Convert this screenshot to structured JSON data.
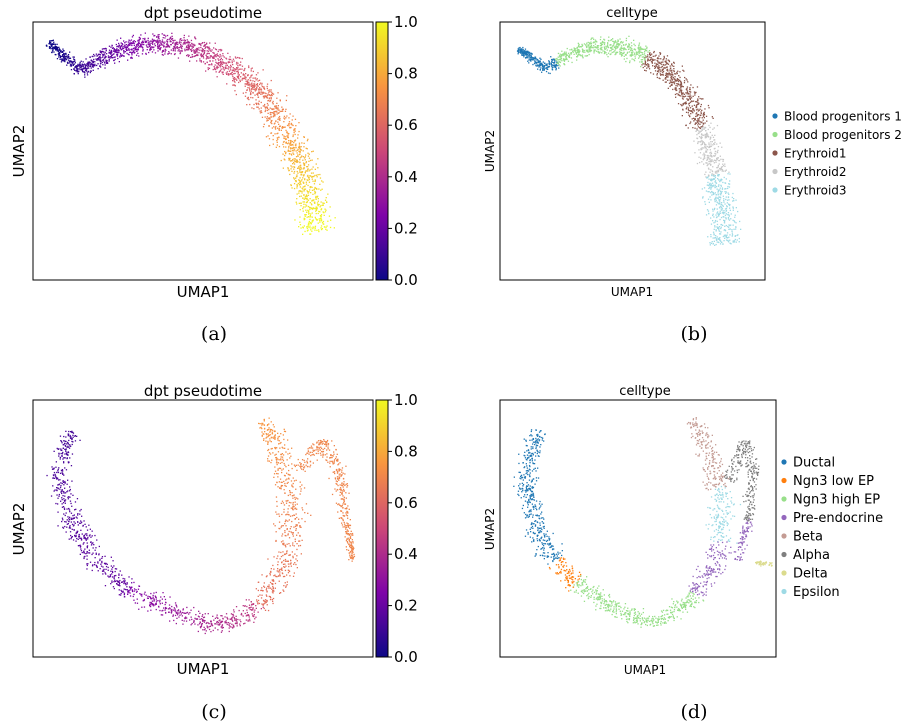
{
  "chart_data": [
    {
      "type": "scatter",
      "title": "dpt pseudotime",
      "xlabel": "UMAP1",
      "ylabel": "UMAP2",
      "caption": "(a)",
      "color_by": "pseudotime",
      "colormap": "plasma",
      "colorbar": {
        "range": [
          0,
          1
        ],
        "ticks": [
          "0.0",
          "0.2",
          "0.4",
          "0.6",
          "0.8",
          "1.0"
        ]
      },
      "ticks_hidden": true
    },
    {
      "type": "scatter",
      "title": "celltype",
      "xlabel": "UMAP1",
      "ylabel": "UMAP2",
      "caption": "(b)",
      "legend_position": "right",
      "legend": [
        {
          "name": "Blood progenitors 1",
          "color": "#1f77b4"
        },
        {
          "name": "Blood progenitors 2",
          "color": "#98df8a"
        },
        {
          "name": "Erythroid1",
          "color": "#8c564b"
        },
        {
          "name": "Erythroid2",
          "color": "#c7c7c7"
        },
        {
          "name": "Erythroid3",
          "color": "#9edae5"
        }
      ],
      "ticks_hidden": true
    },
    {
      "type": "scatter",
      "title": "dpt pseudotime",
      "xlabel": "UMAP1",
      "ylabel": "UMAP2",
      "caption": "(c)",
      "color_by": "pseudotime",
      "colormap": "plasma",
      "colorbar": {
        "range": [
          0,
          1
        ],
        "ticks": [
          "0.0",
          "0.2",
          "0.4",
          "0.6",
          "0.8",
          "1.0"
        ]
      },
      "ticks_hidden": true
    },
    {
      "type": "scatter",
      "title": "celltype",
      "xlabel": "UMAP1",
      "ylabel": "UMAP2",
      "caption": "(d)",
      "legend_position": "right",
      "legend": [
        {
          "name": "Ductal",
          "color": "#1f77b4"
        },
        {
          "name": "Ngn3 low EP",
          "color": "#ff7f0e"
        },
        {
          "name": "Ngn3 high EP",
          "color": "#98df8a"
        },
        {
          "name": "Pre-endocrine",
          "color": "#9467bd"
        },
        {
          "name": "Beta",
          "color": "#c49c94"
        },
        {
          "name": "Alpha",
          "color": "#7f7f7f"
        },
        {
          "name": "Delta",
          "color": "#dbdb8d"
        },
        {
          "name": "Epsilon",
          "color": "#9edae5"
        }
      ],
      "ticks_hidden": true
    }
  ]
}
